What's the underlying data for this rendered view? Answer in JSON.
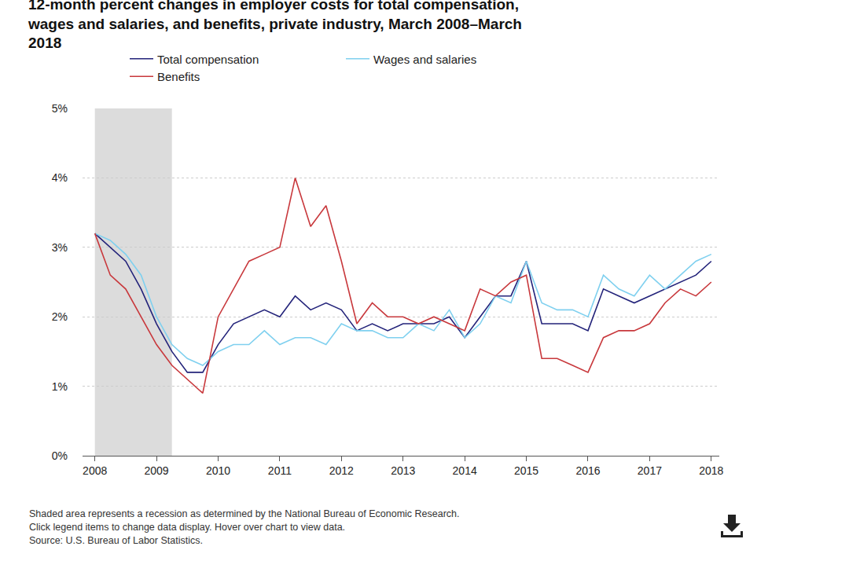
{
  "chart_data": {
    "type": "line",
    "title": "12-month percent changes in employer costs for total compensation, wages and salaries, and benefits, private industry, March 2008–March 2018",
    "notes": [
      "Shaded area represents a recession as determined by the National Bureau of Economic Research.",
      "Click legend items to change data display. Hover over chart to view data.",
      "Source: U.S. Bureau of Labor Statistics."
    ],
    "shaded_range": [
      2008,
      2009.25
    ],
    "x": [
      2008,
      2008.25,
      2008.5,
      2008.75,
      2009,
      2009.25,
      2009.5,
      2009.75,
      2010,
      2010.25,
      2010.5,
      2010.75,
      2011,
      2011.25,
      2011.5,
      2011.75,
      2012,
      2012.25,
      2012.5,
      2012.75,
      2013,
      2013.25,
      2013.5,
      2013.75,
      2014,
      2014.25,
      2014.5,
      2014.75,
      2015,
      2015.25,
      2015.5,
      2015.75,
      2016,
      2016.25,
      2016.5,
      2016.75,
      2017,
      2017.25,
      2017.5,
      2017.75,
      2018
    ],
    "series": [
      {
        "name": "Total compensation",
        "color": "#23237a",
        "values": [
          3.2,
          3.0,
          2.8,
          2.4,
          1.9,
          1.5,
          1.2,
          1.2,
          1.6,
          1.9,
          2.0,
          2.1,
          2.0,
          2.3,
          2.1,
          2.2,
          2.1,
          1.8,
          1.9,
          1.8,
          1.9,
          1.9,
          1.9,
          2.0,
          1.7,
          2.0,
          2.3,
          2.3,
          2.8,
          1.9,
          1.9,
          1.9,
          1.8,
          2.4,
          2.3,
          2.2,
          2.3,
          2.4,
          2.5,
          2.6,
          2.8
        ]
      },
      {
        "name": "Wages and salaries",
        "color": "#7fd0ef",
        "values": [
          3.2,
          3.1,
          2.9,
          2.6,
          2.0,
          1.6,
          1.4,
          1.3,
          1.5,
          1.6,
          1.6,
          1.8,
          1.6,
          1.7,
          1.7,
          1.6,
          1.9,
          1.8,
          1.8,
          1.7,
          1.7,
          1.9,
          1.8,
          2.1,
          1.7,
          1.9,
          2.3,
          2.2,
          2.8,
          2.2,
          2.1,
          2.1,
          2.0,
          2.6,
          2.4,
          2.3,
          2.6,
          2.4,
          2.6,
          2.8,
          2.9
        ]
      },
      {
        "name": "Benefits",
        "color": "#c8383c",
        "values": [
          3.2,
          2.6,
          2.4,
          2.0,
          1.6,
          1.3,
          1.1,
          0.9,
          2.0,
          2.4,
          2.8,
          2.9,
          3.0,
          4.0,
          3.3,
          3.6,
          2.8,
          1.9,
          2.2,
          2.0,
          2.0,
          1.9,
          2.0,
          1.9,
          1.8,
          2.4,
          2.3,
          2.5,
          2.6,
          1.4,
          1.4,
          1.3,
          1.2,
          1.7,
          1.8,
          1.8,
          1.9,
          2.2,
          2.4,
          2.3,
          2.5
        ]
      }
    ],
    "xlim": [
      2007.8,
      2018.13
    ],
    "xticks": [
      2008,
      2009,
      2010,
      2011,
      2012,
      2013,
      2014,
      2015,
      2016,
      2017,
      2018
    ],
    "ylim": [
      0,
      5
    ],
    "yticks": [
      {
        "value": 0,
        "label": "0%"
      },
      {
        "value": 1,
        "label": "1%"
      },
      {
        "value": 2,
        "label": "2%"
      },
      {
        "value": 3,
        "label": "3%"
      },
      {
        "value": 4,
        "label": "4%"
      },
      {
        "value": 5,
        "label": "5%"
      }
    ],
    "grid": true,
    "legend": "top"
  }
}
